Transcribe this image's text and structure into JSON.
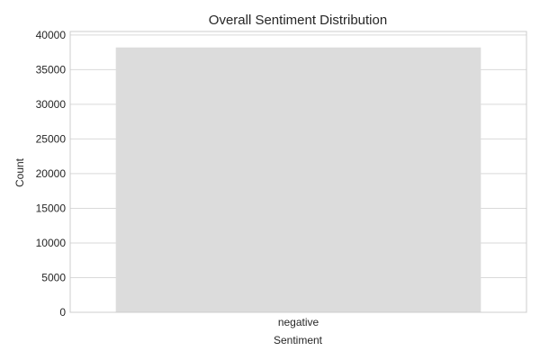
{
  "chart_data": {
    "type": "bar",
    "title": "Overall Sentiment Distribution",
    "xlabel": "Sentiment",
    "ylabel": "Count",
    "categories": [
      "negative"
    ],
    "values": [
      38200
    ],
    "ylim": [
      0,
      40500
    ],
    "yticks": [
      0,
      5000,
      10000,
      15000,
      20000,
      25000,
      30000,
      35000,
      40000
    ],
    "grid": true,
    "bar_color": "#dcdcdc",
    "grid_color": "#d9d9d9",
    "spine_color": "#cccccc"
  }
}
